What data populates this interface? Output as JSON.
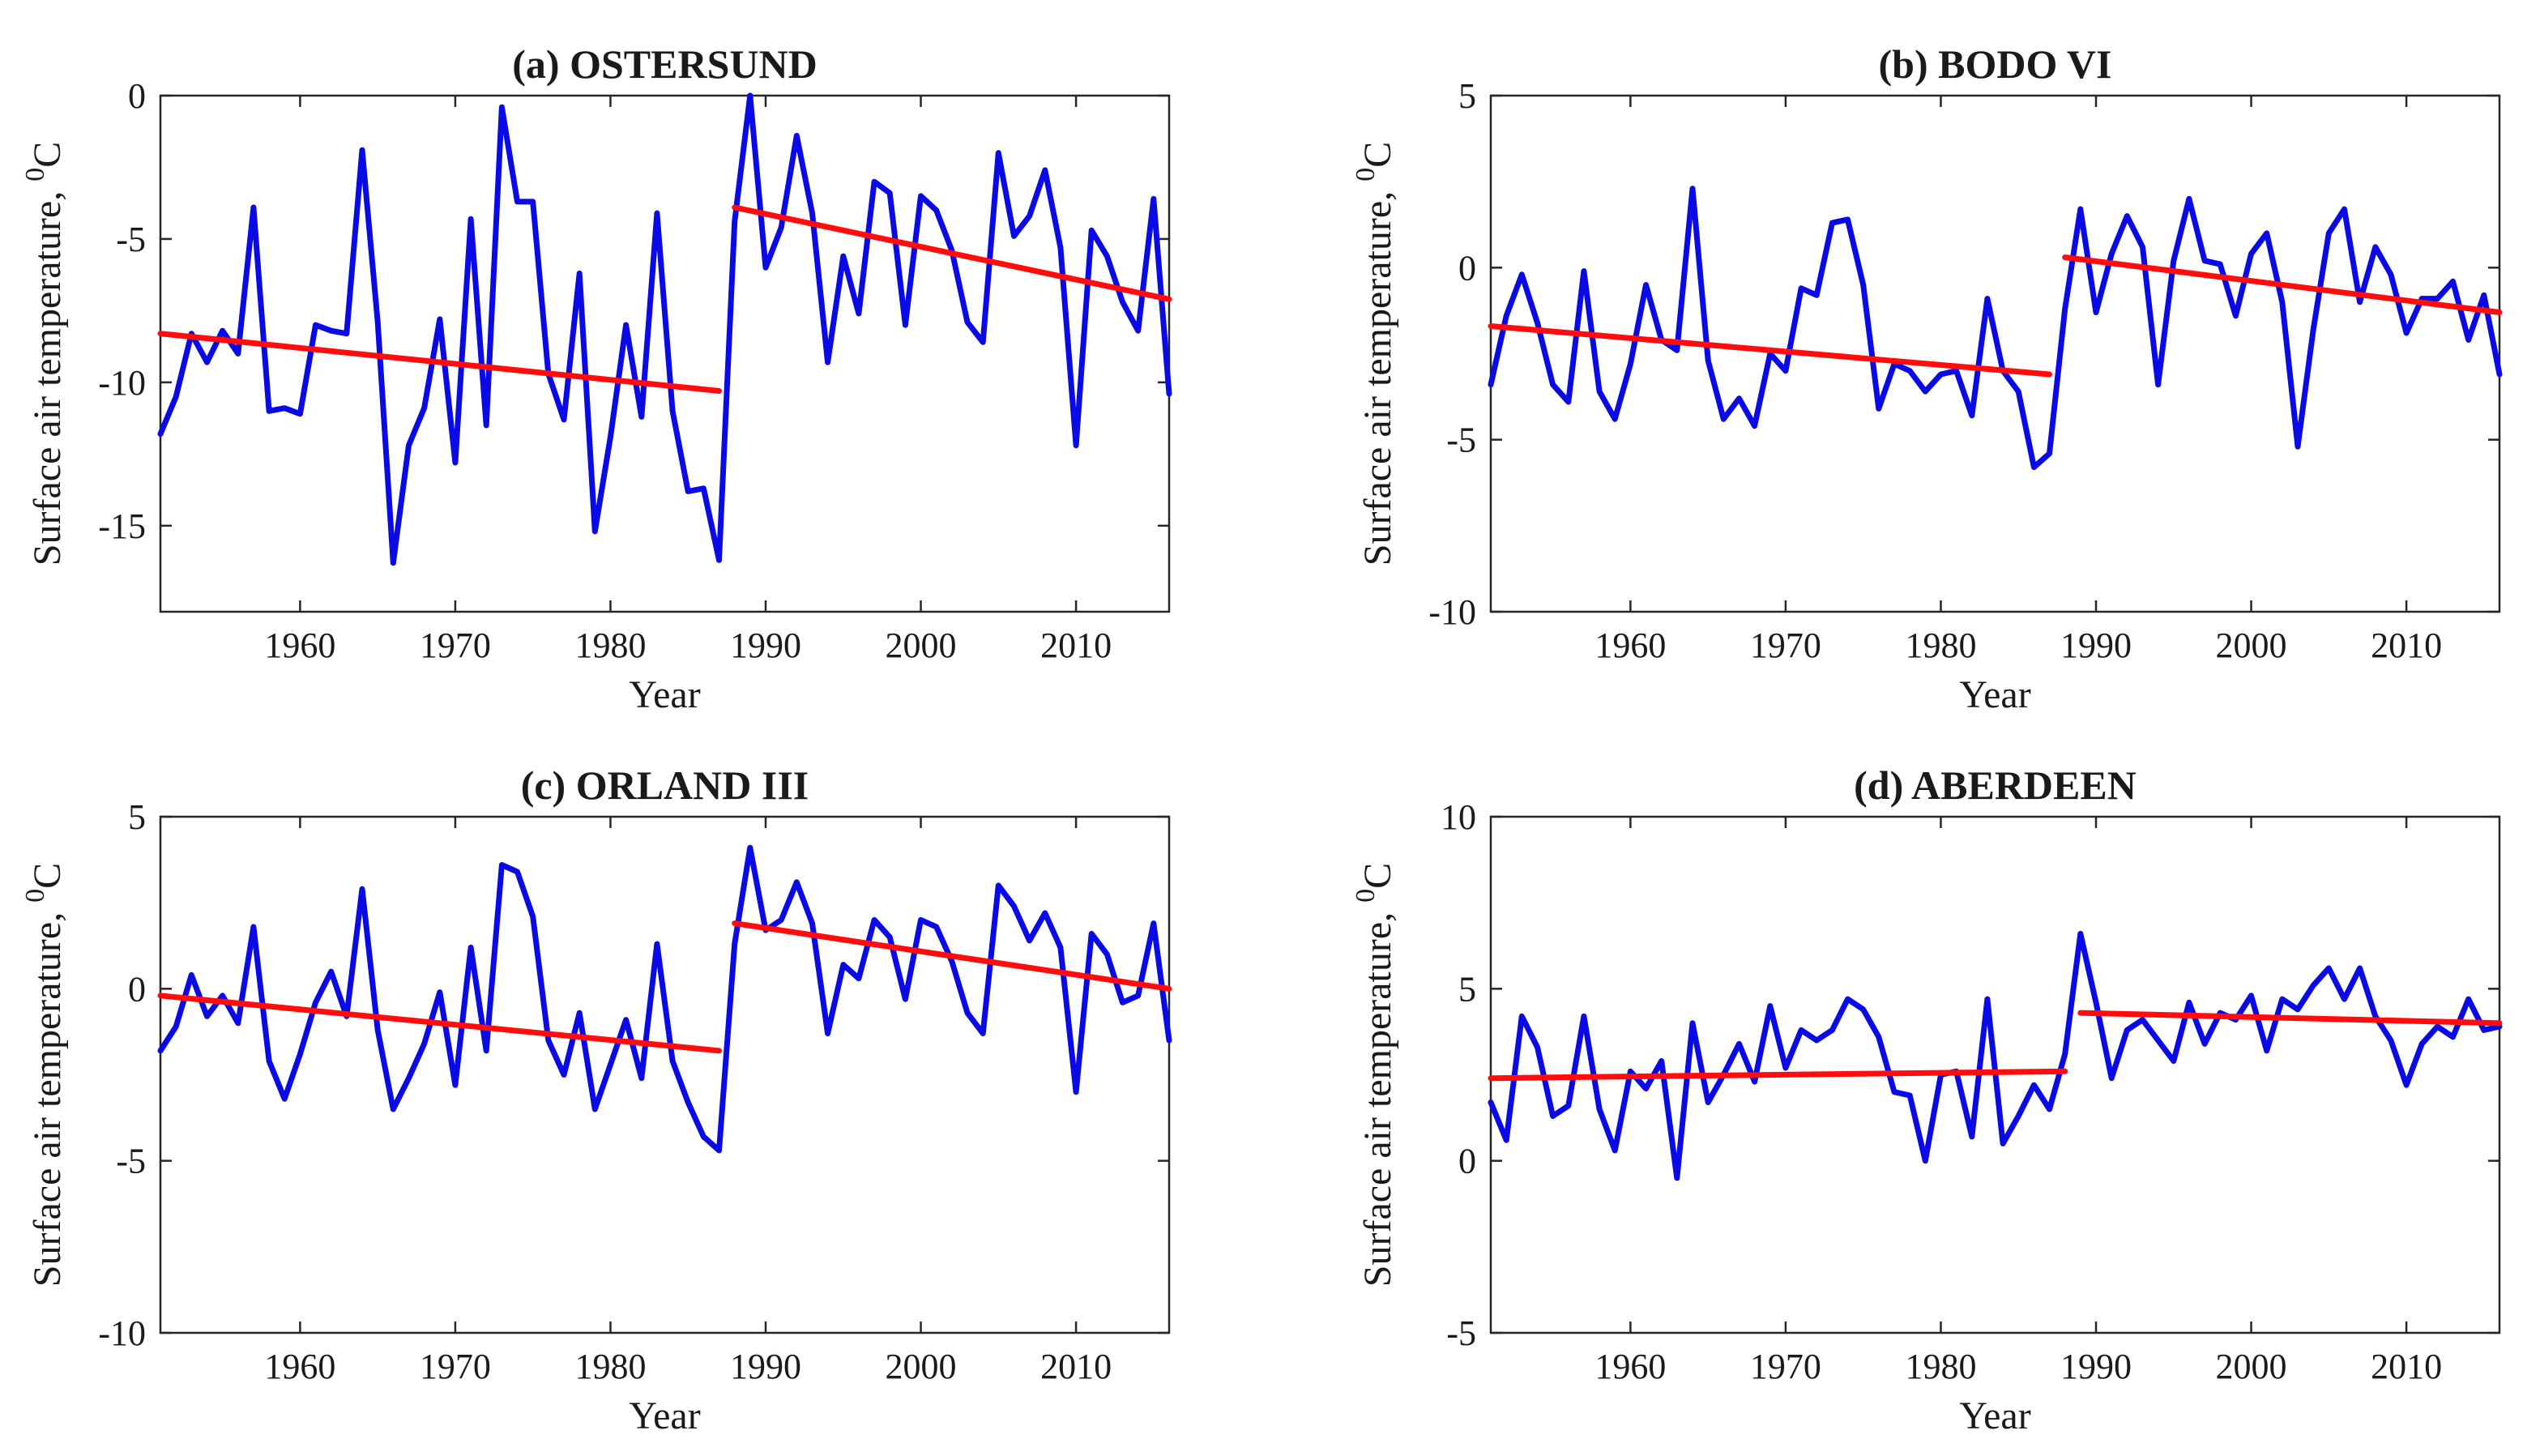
{
  "figure": {
    "description_free": true,
    "xlabel": "Year",
    "ylabel_prefix": "Surface air temperature, ",
    "ylabel_sup": "0",
    "ylabel_unit": "C",
    "colors": {
      "series": "#0a0ae6",
      "trend": "#ff0d0d",
      "axis": "#262626"
    }
  },
  "chart_data": [
    {
      "type": "line",
      "title": "(a) OSTERSUND",
      "xlabel": "Year",
      "ylabel": "Surface air temperature, 0C",
      "xlim": [
        1951,
        2016
      ],
      "ylim": [
        -18,
        0
      ],
      "xticks": [
        1960,
        1970,
        1980,
        1990,
        2000,
        2010
      ],
      "yticks": [
        0,
        -5,
        -10,
        -15
      ],
      "series": [
        {
          "name": "temperature",
          "color": "#0a0ae6",
          "x": [
            1951,
            1952,
            1953,
            1954,
            1955,
            1956,
            1957,
            1958,
            1959,
            1960,
            1961,
            1962,
            1963,
            1964,
            1965,
            1966,
            1967,
            1968,
            1969,
            1970,
            1971,
            1972,
            1973,
            1974,
            1975,
            1976,
            1977,
            1978,
            1979,
            1980,
            1981,
            1982,
            1983,
            1984,
            1985,
            1986,
            1987,
            1988,
            1989,
            1990,
            1991,
            1992,
            1993,
            1994,
            1995,
            1996,
            1997,
            1998,
            1999,
            2000,
            2001,
            2002,
            2003,
            2004,
            2005,
            2006,
            2007,
            2008,
            2009,
            2010,
            2011,
            2012,
            2013,
            2014,
            2015,
            2016
          ],
          "y": [
            -11.8,
            -10.5,
            -8.3,
            -9.3,
            -8.2,
            -9,
            -3.9,
            -11,
            -10.9,
            -11.1,
            -8,
            -8.2,
            -8.3,
            -1.9,
            -7.9,
            -16.3,
            -12.2,
            -10.9,
            -7.8,
            -12.8,
            -4.3,
            -11.5,
            -0.4,
            -3.7,
            -3.7,
            -9.7,
            -11.3,
            -6.2,
            -15.2,
            -11.9,
            -8,
            -11.2,
            -4.1,
            -11,
            -13.8,
            -13.7,
            -16.2,
            -4.4,
            0,
            -6,
            -4.6,
            -1.4,
            -4.1,
            -9.3,
            -5.6,
            -7.6,
            -3,
            -3.4,
            -8,
            -3.5,
            -4,
            -5.4,
            -7.9,
            -8.6,
            -2,
            -4.9,
            -4.2,
            -2.6,
            -5.3,
            -12.2,
            -4.7,
            -5.6,
            -7.2,
            -8.2,
            -3.6,
            -10.4
          ]
        },
        {
          "name": "trend 1951-1987",
          "color": "#ff0d0d",
          "x": [
            1951,
            1987
          ],
          "y": [
            -8.3,
            -10.3
          ]
        },
        {
          "name": "trend 1988-2016",
          "color": "#ff0d0d",
          "x": [
            1988,
            2016
          ],
          "y": [
            -3.9,
            -7.1
          ]
        }
      ]
    },
    {
      "type": "line",
      "title": "(b) BODO VI",
      "xlabel": "Year",
      "ylabel": "Surface air temperature, 0C",
      "xlim": [
        1951,
        2016
      ],
      "ylim": [
        -10,
        5
      ],
      "xticks": [
        1960,
        1970,
        1980,
        1990,
        2000,
        2010
      ],
      "yticks": [
        5,
        0,
        -5,
        -10
      ],
      "series": [
        {
          "name": "temperature",
          "color": "#0a0ae6",
          "x": [
            1951,
            1952,
            1953,
            1954,
            1955,
            1956,
            1957,
            1958,
            1959,
            1960,
            1961,
            1962,
            1963,
            1964,
            1965,
            1966,
            1967,
            1968,
            1969,
            1970,
            1971,
            1972,
            1973,
            1974,
            1975,
            1976,
            1977,
            1978,
            1979,
            1980,
            1981,
            1982,
            1983,
            1984,
            1985,
            1986,
            1987,
            1988,
            1989,
            1990,
            1991,
            1992,
            1993,
            1994,
            1995,
            1996,
            1997,
            1998,
            1999,
            2000,
            2001,
            2002,
            2003,
            2004,
            2005,
            2006,
            2007,
            2008,
            2009,
            2010,
            2011,
            2012,
            2013,
            2014,
            2015,
            2016
          ],
          "y": [
            -3.4,
            -1.4,
            -0.2,
            -1.6,
            -3.4,
            -3.9,
            -0.1,
            -3.6,
            -4.4,
            -2.8,
            -0.5,
            -2.1,
            -2.4,
            2.3,
            -2.7,
            -4.4,
            -3.8,
            -4.6,
            -2.5,
            -3,
            -0.6,
            -0.8,
            1.3,
            1.4,
            -0.5,
            -4.1,
            -2.8,
            -3,
            -3.6,
            -3.1,
            -3,
            -4.3,
            -0.9,
            -3,
            -3.6,
            -5.8,
            -5.4,
            -1.2,
            1.7,
            -1.3,
            0.4,
            1.5,
            0.6,
            -3.4,
            0.2,
            2,
            0.2,
            0.1,
            -1.4,
            0.4,
            1,
            -1,
            -5.2,
            -1.8,
            1,
            1.7,
            -1,
            0.6,
            -0.2,
            -1.9,
            -0.9,
            -0.9,
            -0.4,
            -2.1,
            -0.8,
            -3.1
          ]
        },
        {
          "name": "trend 1951-1987",
          "color": "#ff0d0d",
          "x": [
            1951,
            1987
          ],
          "y": [
            -1.7,
            -3.1
          ]
        },
        {
          "name": "trend 1988-2016",
          "color": "#ff0d0d",
          "x": [
            1988,
            2016
          ],
          "y": [
            0.3,
            -1.3
          ]
        }
      ]
    },
    {
      "type": "line",
      "title": "(c) ORLAND III",
      "xlabel": "Year",
      "ylabel": "Surface air temperature, 0C",
      "xlim": [
        1951,
        2016
      ],
      "ylim": [
        -10,
        5
      ],
      "xticks": [
        1960,
        1970,
        1980,
        1990,
        2000,
        2010
      ],
      "yticks": [
        5,
        0,
        -5,
        -10
      ],
      "series": [
        {
          "name": "temperature",
          "color": "#0a0ae6",
          "x": [
            1951,
            1952,
            1953,
            1954,
            1955,
            1956,
            1957,
            1958,
            1959,
            1960,
            1961,
            1962,
            1963,
            1964,
            1965,
            1966,
            1967,
            1968,
            1969,
            1970,
            1971,
            1972,
            1973,
            1974,
            1975,
            1976,
            1977,
            1978,
            1979,
            1980,
            1981,
            1982,
            1983,
            1984,
            1985,
            1986,
            1987,
            1988,
            1989,
            1990,
            1991,
            1992,
            1993,
            1994,
            1995,
            1996,
            1997,
            1998,
            1999,
            2000,
            2001,
            2002,
            2003,
            2004,
            2005,
            2006,
            2007,
            2008,
            2009,
            2010,
            2011,
            2012,
            2013,
            2014,
            2015,
            2016
          ],
          "y": [
            -1.8,
            -1.1,
            0.4,
            -0.8,
            -0.2,
            -1,
            1.8,
            -2.1,
            -3.2,
            -1.9,
            -0.4,
            0.5,
            -0.8,
            2.9,
            -1.2,
            -3.5,
            -2.6,
            -1.6,
            -0.1,
            -2.8,
            1.2,
            -1.8,
            3.6,
            3.4,
            2.1,
            -1.5,
            -2.5,
            -0.7,
            -3.5,
            -2.2,
            -0.9,
            -2.6,
            1.3,
            -2.1,
            -3.3,
            -4.3,
            -4.7,
            1.3,
            4.1,
            1.7,
            2,
            3.1,
            1.9,
            -1.3,
            0.7,
            0.3,
            2,
            1.5,
            -0.3,
            2,
            1.8,
            0.8,
            -0.7,
            -1.3,
            3,
            2.4,
            1.4,
            2.2,
            1.2,
            -3,
            1.6,
            1,
            -0.4,
            -0.2,
            1.9,
            -1.5
          ]
        },
        {
          "name": "trend 1951-1987",
          "color": "#ff0d0d",
          "x": [
            1951,
            1987
          ],
          "y": [
            -0.2,
            -1.8
          ]
        },
        {
          "name": "trend 1988-2016",
          "color": "#ff0d0d",
          "x": [
            1988,
            2016
          ],
          "y": [
            1.9,
            0
          ]
        }
      ]
    },
    {
      "type": "line",
      "title": "(d) ABERDEEN",
      "xlabel": "Year",
      "ylabel": "Surface air temperature, 0C",
      "xlim": [
        1951,
        2016
      ],
      "ylim": [
        -5,
        10
      ],
      "xticks": [
        1960,
        1970,
        1980,
        1990,
        2000,
        2010
      ],
      "yticks": [
        10,
        5,
        0,
        -5
      ],
      "series": [
        {
          "name": "temperature",
          "color": "#0a0ae6",
          "x": [
            1951,
            1952,
            1953,
            1954,
            1955,
            1956,
            1957,
            1958,
            1959,
            1960,
            1961,
            1962,
            1963,
            1964,
            1965,
            1966,
            1967,
            1968,
            1969,
            1970,
            1971,
            1972,
            1973,
            1974,
            1975,
            1976,
            1977,
            1978,
            1979,
            1980,
            1981,
            1982,
            1983,
            1984,
            1985,
            1986,
            1987,
            1988,
            1989,
            1990,
            1991,
            1992,
            1993,
            1994,
            1995,
            1996,
            1997,
            1998,
            1999,
            2000,
            2001,
            2002,
            2003,
            2004,
            2005,
            2006,
            2007,
            2008,
            2009,
            2010,
            2011,
            2012,
            2013,
            2014,
            2015,
            2016
          ],
          "y": [
            1.7,
            0.6,
            4.2,
            3.3,
            1.3,
            1.6,
            4.2,
            1.5,
            0.3,
            2.6,
            2.1,
            2.9,
            -0.5,
            4,
            1.7,
            2.5,
            3.4,
            2.3,
            4.5,
            2.7,
            3.8,
            3.5,
            3.8,
            4.7,
            4.4,
            3.6,
            2,
            1.9,
            0,
            2.5,
            2.6,
            0.7,
            4.7,
            0.5,
            1.3,
            2.2,
            1.5,
            3.1,
            6.6,
            4.6,
            2.4,
            3.8,
            4.1,
            3.5,
            2.9,
            4.6,
            3.4,
            4.3,
            4.1,
            4.8,
            3.2,
            4.7,
            4.4,
            5.1,
            5.6,
            4.7,
            5.6,
            4.2,
            3.5,
            2.2,
            3.4,
            3.9,
            3.6,
            4.7,
            3.8,
            3.9
          ]
        },
        {
          "name": "trend 1951-1987",
          "color": "#ff0d0d",
          "x": [
            1951,
            1988
          ],
          "y": [
            2.4,
            2.6
          ]
        },
        {
          "name": "trend 1988-2016",
          "color": "#ff0d0d",
          "x": [
            1989,
            2016
          ],
          "y": [
            4.3,
            4
          ]
        }
      ]
    }
  ]
}
